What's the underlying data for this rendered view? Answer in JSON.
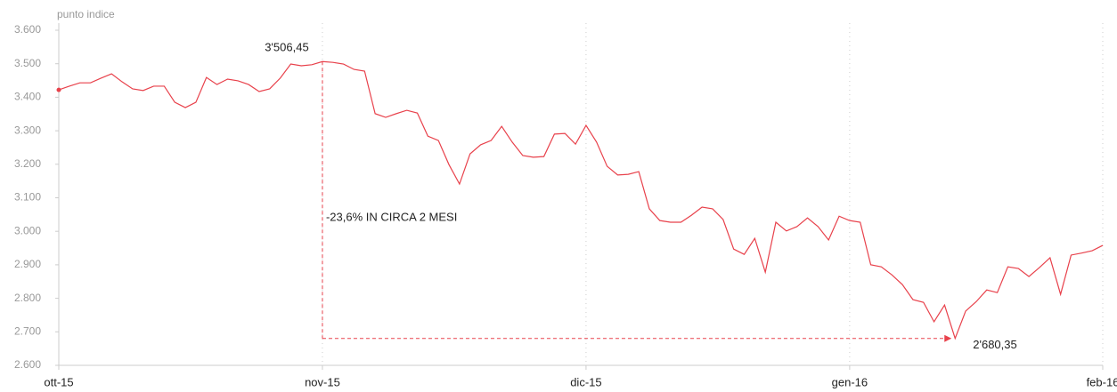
{
  "chart_data": {
    "type": "line",
    "y_label": "punto indice",
    "annotation": "-23,6% IN CIRCA 2 MESI",
    "categories": [
      "ott-15",
      null,
      null,
      null,
      null,
      null,
      null,
      null,
      null,
      null,
      null,
      null,
      null,
      null,
      null,
      null,
      null,
      null,
      null,
      null,
      null,
      null,
      null,
      null,
      null,
      "nov-15",
      null,
      null,
      null,
      null,
      null,
      null,
      null,
      null,
      null,
      null,
      null,
      null,
      null,
      null,
      null,
      null,
      null,
      null,
      null,
      null,
      null,
      null,
      null,
      null,
      "dic-15",
      null,
      null,
      null,
      null,
      null,
      null,
      null,
      null,
      null,
      null,
      null,
      null,
      null,
      null,
      null,
      null,
      null,
      null,
      null,
      null,
      null,
      null,
      null,
      null,
      "gen-16",
      null,
      null,
      null,
      null,
      null,
      null,
      null,
      null,
      null,
      null,
      null,
      null,
      null,
      null,
      null,
      null,
      null,
      null,
      null,
      null,
      null,
      null,
      null,
      "feb-16"
    ],
    "series": [
      {
        "name": "punto indice",
        "color": "#e8414b",
        "values": [
          3422,
          3433,
          3443,
          3443,
          3457,
          3470,
          3446,
          3425,
          3420,
          3433,
          3433,
          3385,
          3369,
          3385,
          3459,
          3438,
          3454,
          3449,
          3438,
          3417,
          3425,
          3457,
          3499,
          3494,
          3497,
          3506.45,
          3504,
          3499,
          3483,
          3478,
          3351,
          3340,
          3351,
          3361,
          3353,
          3284,
          3271,
          3199,
          3141,
          3231,
          3258,
          3271,
          3313,
          3266,
          3226,
          3221,
          3223,
          3290,
          3292,
          3260,
          3316,
          3266,
          3194,
          3168,
          3170,
          3178,
          3067,
          3032,
          3027,
          3027,
          3048,
          3072,
          3067,
          3035,
          2947,
          2931,
          2979,
          2878,
          3027,
          3001,
          3014,
          3040,
          3014,
          2974,
          3045,
          3032,
          3027,
          2900,
          2894,
          2870,
          2841,
          2796,
          2788,
          2730,
          2780,
          2680.35,
          2762,
          2790,
          2825,
          2817,
          2894,
          2889,
          2865,
          2892,
          2921,
          2812,
          2929,
          2935,
          2942,
          2958
        ],
        "value_labels": [
          null,
          null,
          null,
          null,
          null,
          null,
          null,
          null,
          null,
          null,
          null,
          null,
          null,
          null,
          null,
          null,
          null,
          null,
          null,
          null,
          null,
          null,
          null,
          null,
          null,
          "3'506,45",
          null,
          null,
          null,
          null,
          null,
          null,
          null,
          null,
          null,
          null,
          null,
          null,
          null,
          null,
          null,
          null,
          null,
          null,
          null,
          null,
          null,
          null,
          null,
          null,
          null,
          null,
          null,
          null,
          null,
          null,
          null,
          null,
          null,
          null,
          null,
          null,
          null,
          null,
          null,
          null,
          null,
          null,
          null,
          null,
          null,
          null,
          null,
          null,
          null,
          null,
          null,
          null,
          null,
          null,
          null,
          null,
          null,
          null,
          null,
          "2'680,35",
          null,
          null,
          null,
          null,
          null,
          null,
          null,
          null,
          null,
          null,
          null,
          null,
          null,
          null
        ]
      }
    ],
    "ylim": [
      2600,
      3600
    ],
    "yticks": [
      {
        "value": 2600,
        "label": "2.600"
      },
      {
        "value": 2700,
        "label": "2.700"
      },
      {
        "value": 2800,
        "label": "2.800"
      },
      {
        "value": 2900,
        "label": "2.900"
      },
      {
        "value": 3000,
        "label": "3.000"
      },
      {
        "value": 3100,
        "label": "3.100"
      },
      {
        "value": 3200,
        "label": "3.200"
      },
      {
        "value": 3300,
        "label": "3.300"
      },
      {
        "value": 3400,
        "label": "3.400"
      },
      {
        "value": 3500,
        "label": "3.500"
      },
      {
        "value": 3600,
        "label": "3.600"
      }
    ],
    "grid": true
  }
}
